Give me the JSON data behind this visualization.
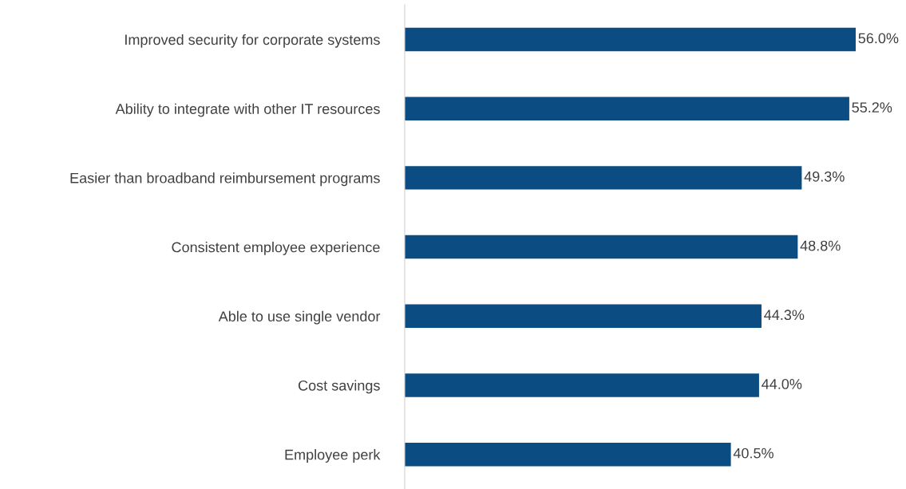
{
  "chart_data": {
    "type": "bar",
    "orientation": "horizontal",
    "categories": [
      "Improved security for corporate systems",
      "Ability to integrate with other IT resources",
      "Easier than broadband reimbursement programs",
      "Consistent employee experience",
      "Able to use single vendor",
      "Cost savings",
      "Employee perk"
    ],
    "values": [
      56.0,
      55.2,
      49.3,
      48.8,
      44.3,
      44.0,
      40.5
    ],
    "value_labels": [
      "56.0%",
      "55.2%",
      "49.3%",
      "48.8%",
      "44.3%",
      "44.0%",
      "40.5%"
    ],
    "color": "#0b4c82",
    "grid": false,
    "legend": false
  }
}
